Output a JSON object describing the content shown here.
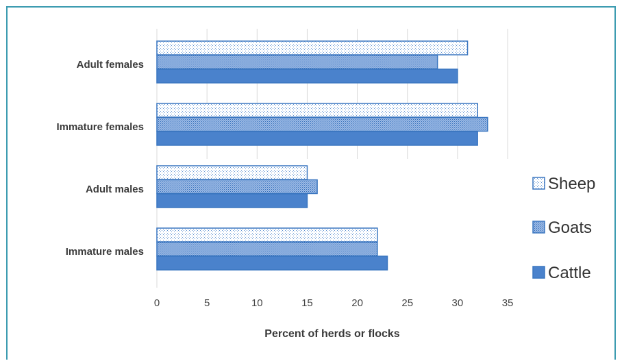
{
  "chart_data": {
    "type": "bar",
    "orientation": "horizontal",
    "categories": [
      "Adult females",
      "Immature females",
      "Adult males",
      "Immature males"
    ],
    "series": [
      {
        "name": "Sheep",
        "values": [
          31,
          32,
          15,
          22
        ],
        "pattern": "light-dotted"
      },
      {
        "name": "Goats",
        "values": [
          28,
          33,
          16,
          22
        ],
        "pattern": "medium-dotted"
      },
      {
        "name": "Cattle",
        "values": [
          30,
          32,
          15,
          23
        ],
        "pattern": "solid"
      }
    ],
    "xlabel": "Percent of herds or flocks",
    "ylabel": "",
    "xlim": [
      0,
      35
    ],
    "xticks": [
      "0",
      "5",
      "10",
      "15",
      "20",
      "25",
      "30",
      "35"
    ],
    "grid": "vertical",
    "legend": "right",
    "colors": {
      "bar_edge": "#3a76c0",
      "bar_fill": "#4a82cc",
      "frame": "#3b9bb0",
      "grid": "#d9d9d9"
    }
  }
}
